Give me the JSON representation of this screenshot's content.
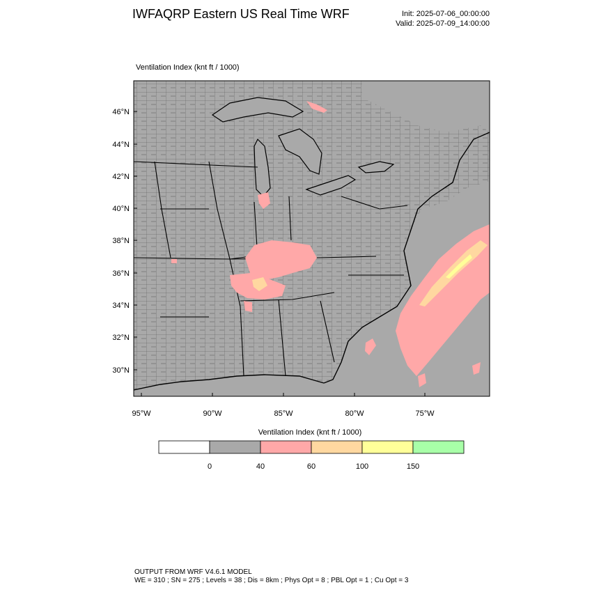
{
  "header": {
    "title": "IWFAQRP Eastern US Real Time WRF",
    "init": "Init: 2025-07-06_00:00:00",
    "valid": "Valid: 2025-07-09_14:00:00"
  },
  "field_label": "Ventilation Index   (knt ft / 1000)",
  "axes": {
    "lat_labels": [
      "46°N",
      "44°N",
      "42°N",
      "40°N",
      "38°N",
      "36°N",
      "34°N",
      "32°N",
      "30°N"
    ],
    "lon_labels": [
      "95°W",
      "90°W",
      "85°W",
      "80°W",
      "75°W"
    ]
  },
  "legend": {
    "title": "Ventilation Index  (knt ft / 1000)",
    "colors": [
      "#ffffff",
      "#a9a9a9",
      "#ffa8a8",
      "#ffd8a0",
      "#ffff99",
      "#a8ffa8"
    ],
    "ticks": [
      "0",
      "40",
      "60",
      "100",
      "150"
    ]
  },
  "footer": {
    "line1": "OUTPUT FROM WRF V4.6.1 MODEL",
    "line2": "WE = 310 ; SN = 275 ; Levels = 38 ; Dis = 8km ; Phys Opt = 8 ; PBL Opt = 1 ; Cu Opt = 3"
  },
  "colors": {
    "land": "#a9a9a9",
    "water": "#a9a9a9",
    "low_index": "#ffa8a8",
    "mid_index": "#ffd8a0"
  }
}
